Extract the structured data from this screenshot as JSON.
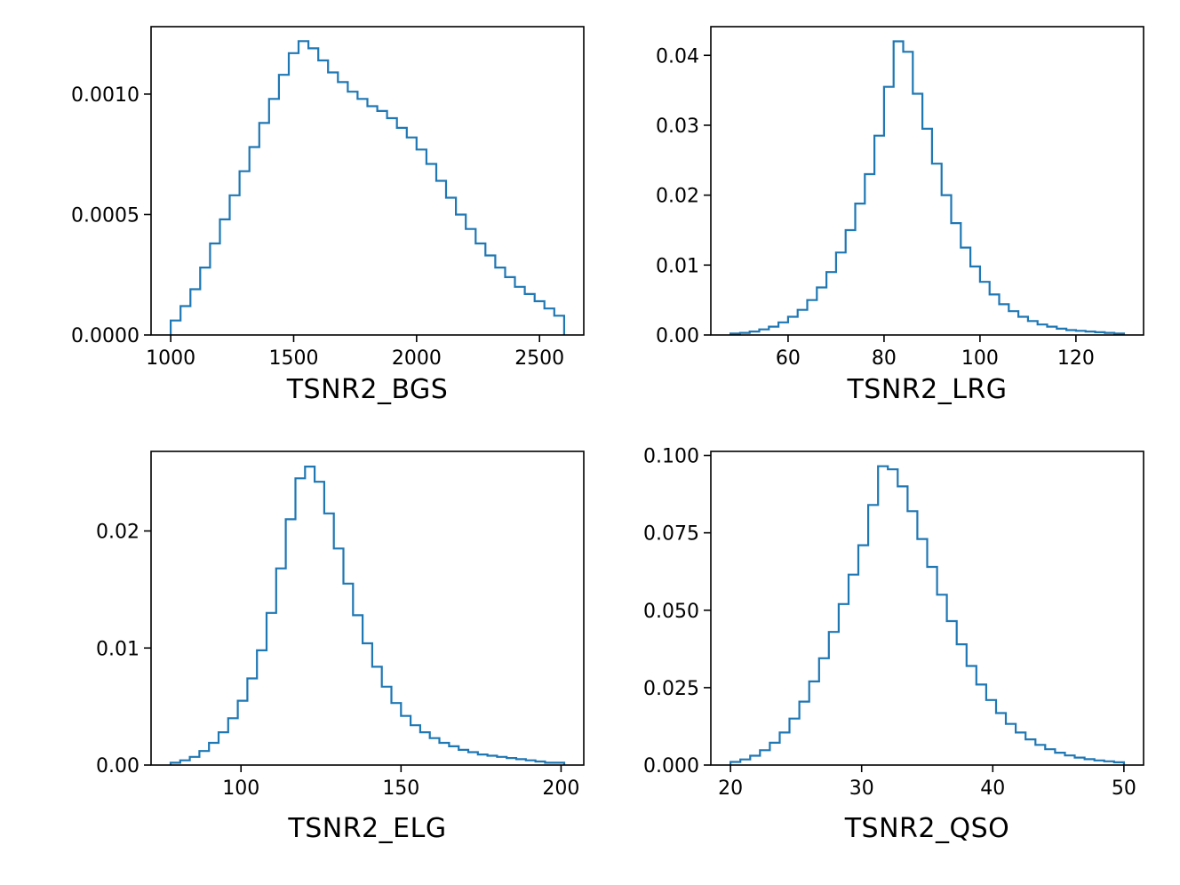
{
  "figure": {
    "background": "#ffffff",
    "line_color": "#1f77b4",
    "text_color": "#000000"
  },
  "chart_data": [
    {
      "type": "histogram-step",
      "xlabel": "TSNR2_BGS",
      "ylabel": "",
      "xlim": [
        920,
        2680
      ],
      "ylim": [
        0,
        0.00128
      ],
      "xticks": [
        1000,
        1500,
        2000,
        2500
      ],
      "xtick_labels": [
        "1000",
        "1500",
        "2000",
        "2500"
      ],
      "yticks": [
        0.0,
        0.0005,
        0.001
      ],
      "ytick_labels": [
        "0.0000",
        "0.0005",
        "0.0010"
      ],
      "bin_start": 1000,
      "bin_width": 40,
      "densities": [
        6e-05,
        0.00012,
        0.00019,
        0.00028,
        0.00038,
        0.00048,
        0.00058,
        0.00068,
        0.00078,
        0.00088,
        0.00098,
        0.00108,
        0.00117,
        0.00122,
        0.00119,
        0.00114,
        0.00109,
        0.00105,
        0.00101,
        0.00098,
        0.00095,
        0.00093,
        0.0009,
        0.00086,
        0.00082,
        0.00077,
        0.00071,
        0.00064,
        0.00057,
        0.0005,
        0.00044,
        0.00038,
        0.00033,
        0.00028,
        0.00024,
        0.0002,
        0.00017,
        0.00014,
        0.00011,
        8e-05
      ]
    },
    {
      "type": "histogram-step",
      "xlabel": "TSNR2_LRG",
      "ylabel": "",
      "xlim": [
        43.9,
        134.1
      ],
      "ylim": [
        0,
        0.0441
      ],
      "xticks": [
        60,
        80,
        100,
        120
      ],
      "xtick_labels": [
        "60",
        "80",
        "100",
        "120"
      ],
      "yticks": [
        0.0,
        0.01,
        0.02,
        0.03,
        0.04
      ],
      "ytick_labels": [
        "0.00",
        "0.01",
        "0.02",
        "0.03",
        "0.04"
      ],
      "bin_start": 48,
      "bin_width": 2,
      "densities": [
        0.0002,
        0.0003,
        0.0005,
        0.0008,
        0.0012,
        0.0018,
        0.0026,
        0.0036,
        0.005,
        0.0068,
        0.009,
        0.0118,
        0.015,
        0.0188,
        0.023,
        0.0285,
        0.0355,
        0.042,
        0.0405,
        0.0345,
        0.0295,
        0.0245,
        0.02,
        0.016,
        0.0125,
        0.0098,
        0.0076,
        0.0058,
        0.0044,
        0.0034,
        0.0026,
        0.002,
        0.0015,
        0.0012,
        0.0009,
        0.0007,
        0.0006,
        0.0005,
        0.0004,
        0.0003,
        0.0002
      ]
    },
    {
      "type": "histogram-step",
      "xlabel": "TSNR2_ELG",
      "ylabel": "",
      "xlim": [
        71.9,
        207.1
      ],
      "ylim": [
        0,
        0.0268
      ],
      "xticks": [
        100,
        150,
        200
      ],
      "xtick_labels": [
        "100",
        "150",
        "200"
      ],
      "yticks": [
        0.0,
        0.01,
        0.02
      ],
      "ytick_labels": [
        "0.00",
        "0.01",
        "0.02"
      ],
      "bin_start": 78,
      "bin_width": 3,
      "densities": [
        0.0002,
        0.0004,
        0.0007,
        0.0012,
        0.0019,
        0.0028,
        0.004,
        0.0055,
        0.0074,
        0.0098,
        0.013,
        0.0168,
        0.021,
        0.0245,
        0.0255,
        0.0242,
        0.0215,
        0.0185,
        0.0155,
        0.0128,
        0.0104,
        0.0084,
        0.0067,
        0.0053,
        0.0042,
        0.0034,
        0.0028,
        0.0023,
        0.0019,
        0.0016,
        0.0013,
        0.0011,
        0.0009,
        0.0008,
        0.0007,
        0.0006,
        0.0005,
        0.0004,
        0.0003,
        0.0002,
        0.0002
      ]
    },
    {
      "type": "histogram-step",
      "xlabel": "TSNR2_QSO",
      "ylabel": "",
      "xlim": [
        18.5,
        51.5
      ],
      "ylim": [
        0,
        0.1013
      ],
      "xticks": [
        20,
        30,
        40,
        50
      ],
      "xtick_labels": [
        "20",
        "30",
        "40",
        "50"
      ],
      "yticks": [
        0.0,
        0.025,
        0.05,
        0.075,
        0.1
      ],
      "ytick_labels": [
        "0.000",
        "0.025",
        "0.050",
        "0.075",
        "0.100"
      ],
      "bin_start": 20,
      "bin_width": 0.75,
      "densities": [
        0.001,
        0.0018,
        0.003,
        0.0048,
        0.0072,
        0.0105,
        0.015,
        0.0205,
        0.027,
        0.0345,
        0.043,
        0.052,
        0.0615,
        0.071,
        0.084,
        0.0965,
        0.0955,
        0.09,
        0.082,
        0.073,
        0.064,
        0.055,
        0.0465,
        0.039,
        0.032,
        0.026,
        0.021,
        0.0168,
        0.0133,
        0.0105,
        0.0083,
        0.0065,
        0.0051,
        0.004,
        0.0031,
        0.0024,
        0.0019,
        0.0015,
        0.0012,
        0.0009
      ]
    }
  ]
}
